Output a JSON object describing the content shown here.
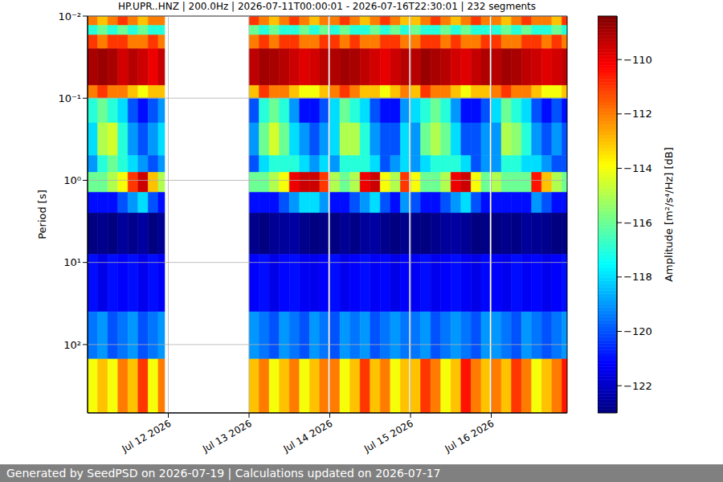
{
  "chart_data": {
    "type": "heatmap",
    "title": "HP.UPR..HNZ | 200.0Hz | 2026-07-11T00:00:01 - 2026-07-16T22:30:01 | 232 segments",
    "y_label": "Period [s]",
    "footer": "Generated by SeedPSD on 2026-07-19 | Calculations updated on 2026-07-17",
    "colorbar_label": "Amplitude [m²/s⁴/Hz] [dB]",
    "log": "y",
    "grid": true,
    "xlim": [
      0,
      5.94
    ],
    "xticks": [
      {
        "value": 1,
        "label": "Jul 12 2026"
      },
      {
        "value": 2,
        "label": "Jul 13 2026"
      },
      {
        "value": 3,
        "label": "Jul 14 2026"
      },
      {
        "value": 4,
        "label": "Jul 15 2026"
      },
      {
        "value": 5,
        "label": "Jul 16 2026"
      }
    ],
    "ylim": [
      0.01,
      680
    ],
    "yticks": [
      {
        "value": 0.01,
        "label": "10⁻²"
      },
      {
        "value": 0.1,
        "label": "10⁻¹"
      },
      {
        "value": 1,
        "label": "10⁰"
      },
      {
        "value": 10,
        "label": "10¹"
      },
      {
        "value": 100,
        "label": "10²"
      }
    ],
    "zlim": [
      -123,
      -108.4
    ],
    "zticks": [
      {
        "value": -122,
        "label": "−122"
      },
      {
        "value": -120,
        "label": "−120"
      },
      {
        "value": -118,
        "label": "−118"
      },
      {
        "value": -116,
        "label": "−116"
      },
      {
        "value": -114,
        "label": "−114"
      },
      {
        "value": -112,
        "label": "−112"
      },
      {
        "value": -110,
        "label": "−110"
      }
    ],
    "x_bins": [
      0,
      0.125,
      0.25,
      0.375,
      0.5,
      0.625,
      0.75,
      0.875,
      0.955,
      2.0,
      2.125,
      2.25,
      2.375,
      2.5,
      2.625,
      2.75,
      2.875,
      2.98,
      3.0,
      3.125,
      3.25,
      3.375,
      3.5,
      3.625,
      3.75,
      3.875,
      3.98,
      4.0,
      4.125,
      4.25,
      4.375,
      4.5,
      4.625,
      4.75,
      4.875,
      4.98,
      5.0,
      5.125,
      5.25,
      5.375,
      5.5,
      5.625,
      5.75,
      5.875,
      5.94
    ],
    "y_bins": [
      0.01,
      0.013,
      0.017,
      0.025,
      0.07,
      0.1,
      0.2,
      0.5,
      0.8,
      1.4,
      2.5,
      8,
      40,
      150,
      680
    ],
    "z": [
      [
        -112,
        -113,
        -112,
        -111,
        -112,
        -113,
        -112,
        -112,
        null,
        -111,
        -112,
        -113,
        -112,
        -111,
        -112,
        -113,
        -112,
        null,
        -112,
        -111,
        -112,
        -113,
        -112,
        -111,
        -112,
        -113,
        null,
        -113,
        -112,
        -111,
        -112,
        -113,
        -112,
        -111,
        -112,
        null,
        -112,
        -113,
        -112,
        -111,
        -112,
        -112,
        -113,
        -111
      ],
      [
        -117,
        -116,
        -117,
        -116,
        -117,
        -116,
        -117,
        -117,
        null,
        -116,
        -117,
        -116,
        -117,
        -117,
        -116,
        -117,
        -116,
        null,
        -117,
        -116,
        -117,
        -117,
        -116,
        -117,
        -116,
        -117,
        null,
        -116,
        -117,
        -117,
        -116,
        -117,
        -116,
        -117,
        -117,
        null,
        -117,
        -116,
        -117,
        -116,
        -117,
        -117,
        -116,
        -117
      ],
      [
        -111,
        -112,
        -111,
        -111,
        -112,
        -112,
        -111,
        -112,
        null,
        -112,
        -111,
        -112,
        -111,
        -111,
        -112,
        -112,
        -111,
        null,
        -111,
        -112,
        -111,
        -112,
        -112,
        -111,
        -111,
        -112,
        null,
        -112,
        -111,
        -111,
        -112,
        -111,
        -112,
        -112,
        -111,
        null,
        -111,
        -112,
        -112,
        -111,
        -111,
        -112,
        -111,
        -112
      ],
      [
        -109,
        -108.8,
        -109,
        -109.6,
        -109.2,
        -109.5,
        -110,
        -109.4,
        null,
        -109.3,
        -108.9,
        -109,
        -109.2,
        -109.5,
        -109.8,
        -109.6,
        -109.2,
        null,
        -109.1,
        -108.9,
        -109,
        -109.3,
        -109.6,
        -109.9,
        -109.5,
        -109.2,
        null,
        -109.2,
        -108.8,
        -109,
        -109.2,
        -109.6,
        -109.8,
        -109.4,
        -109.1,
        null,
        -109.2,
        -108.9,
        -109,
        -109.3,
        -109.5,
        -109.8,
        -109.6,
        -109.3
      ],
      [
        -112,
        -111,
        -112,
        -112,
        -113,
        -114,
        -113,
        -113,
        null,
        -113,
        -111,
        -112,
        -112,
        -113,
        -114,
        -114,
        -113,
        null,
        -112,
        -111,
        -112,
        -113,
        -113,
        -114,
        -113,
        -112,
        null,
        -113,
        -111,
        -112,
        -112,
        -113,
        -114,
        -113,
        -113,
        null,
        -112,
        -111,
        -112,
        -112,
        -113,
        -114,
        -114,
        -113
      ],
      [
        -117,
        -116,
        -117,
        -118,
        -120,
        -121,
        -120,
        -119,
        null,
        -120,
        -117,
        -116,
        -117,
        -119,
        -121,
        -121,
        -120,
        null,
        -118,
        -116,
        -117,
        -118,
        -120,
        -121,
        -121,
        -119,
        null,
        -118,
        -117,
        -116,
        -117,
        -119,
        -121,
        -121,
        -120,
        null,
        -118,
        -116,
        -117,
        -118,
        -120,
        -121,
        -120,
        -121
      ],
      [
        -118,
        -115,
        -114.5,
        -117,
        -119,
        -120,
        -119,
        -118,
        null,
        -119,
        -116,
        -114.5,
        -116,
        -118,
        -119,
        -120,
        -119,
        null,
        -118,
        -115,
        -115,
        -117,
        -119,
        -120,
        -120,
        -118,
        null,
        -119,
        -116,
        -115,
        -116,
        -118,
        -120,
        -120,
        -119,
        null,
        -119,
        -115,
        -115.5,
        -117,
        -119,
        -120,
        -119,
        -120
      ],
      [
        -119,
        -117,
        -116,
        -117,
        -118,
        -119,
        -120,
        -119,
        null,
        -120,
        -118,
        -117,
        -117,
        -117,
        -118,
        -119,
        -118,
        null,
        -119,
        -117,
        -117,
        -117,
        -118,
        -120,
        -119,
        -118,
        null,
        -119,
        -118,
        -117,
        -117,
        -117,
        -118,
        -120,
        -119,
        null,
        -119,
        -117,
        -117,
        -118,
        -118,
        -119,
        -120,
        -120
      ],
      [
        -116,
        -116,
        -115,
        -114,
        -111,
        -109.5,
        -113,
        -115,
        null,
        -116,
        -116,
        -115,
        -114,
        -110,
        -109.5,
        -109.5,
        -111,
        null,
        -115,
        -116,
        -115,
        -110,
        -109.5,
        -114,
        -115,
        -111,
        null,
        -114,
        -116,
        -116,
        -115,
        -110,
        -109.5,
        -114,
        -116,
        null,
        -115,
        -116,
        -116,
        -116,
        -110.5,
        -113,
        -115,
        -116
      ],
      [
        -121,
        -121,
        -121,
        -120,
        -119,
        -118,
        -120,
        -121,
        null,
        -121,
        -121,
        -121,
        -120,
        -119,
        -118,
        -118,
        -119,
        null,
        -121,
        -121,
        -120,
        -119,
        -118,
        -120,
        -121,
        -119,
        null,
        -120,
        -121,
        -121,
        -120,
        -119,
        -118,
        -120,
        -121,
        null,
        -121,
        -121,
        -121,
        -121,
        -119,
        -120,
        -121,
        -121
      ],
      [
        -123,
        -122.8,
        -123,
        -122.6,
        -122.8,
        -122.5,
        -123,
        -122.7,
        null,
        -122.8,
        -123,
        -122.7,
        -122.6,
        -122.5,
        -122.8,
        -123,
        -122.9,
        null,
        -123,
        -122.7,
        -122.9,
        -122.6,
        -122.5,
        -122.8,
        -123,
        -122.8,
        null,
        -122.9,
        -123,
        -122.8,
        -122.6,
        -122.5,
        -122.7,
        -123,
        -122.9,
        null,
        -123,
        -122.8,
        -122.9,
        -122.6,
        -122.7,
        -122.8,
        -123,
        -122.9
      ],
      [
        -121,
        -121.5,
        -121,
        -121.2,
        -121,
        -121.4,
        -121,
        -121.3,
        null,
        -121.2,
        -121,
        -121.5,
        -121.1,
        -121,
        -121.3,
        -121.4,
        -121.2,
        null,
        -121,
        -121.4,
        -121.2,
        -121,
        -121.3,
        -121.1,
        -121.5,
        -121.2,
        null,
        -121.3,
        -121,
        -121.4,
        -121.2,
        -121,
        -121.3,
        -121.5,
        -121.1,
        null,
        -121.2,
        -121.4,
        -121,
        -121.3,
        -121.1,
        -121.4,
        -121.2,
        -121
      ],
      [
        -119.5,
        -119,
        -120,
        -119.5,
        -119,
        -120,
        -119.5,
        -119,
        null,
        -119,
        -119.5,
        -120,
        -119,
        -119.5,
        -120,
        -119,
        -119.5,
        null,
        -120,
        -119,
        -119.5,
        -119,
        -120,
        -119.5,
        -119,
        -119.5,
        null,
        -119.5,
        -119,
        -120,
        -119.5,
        -119,
        -119.5,
        -120,
        -119,
        null,
        -119,
        -119.5,
        -120,
        -119,
        -119.5,
        -120,
        -119.5,
        -119
      ],
      [
        -114,
        -113,
        -114,
        -112,
        -113,
        -111,
        -114,
        -112,
        null,
        -113,
        -112,
        -114,
        -113,
        -112,
        -114,
        -113,
        -112,
        null,
        -112,
        -114,
        -113,
        -111,
        -113,
        -112,
        -114,
        -113,
        null,
        -113,
        -111,
        -112,
        -114,
        -113,
        -110.5,
        -112,
        -113,
        null,
        -112,
        -113,
        -111,
        -112,
        -114,
        -113,
        -112,
        -110.5
      ]
    ]
  }
}
